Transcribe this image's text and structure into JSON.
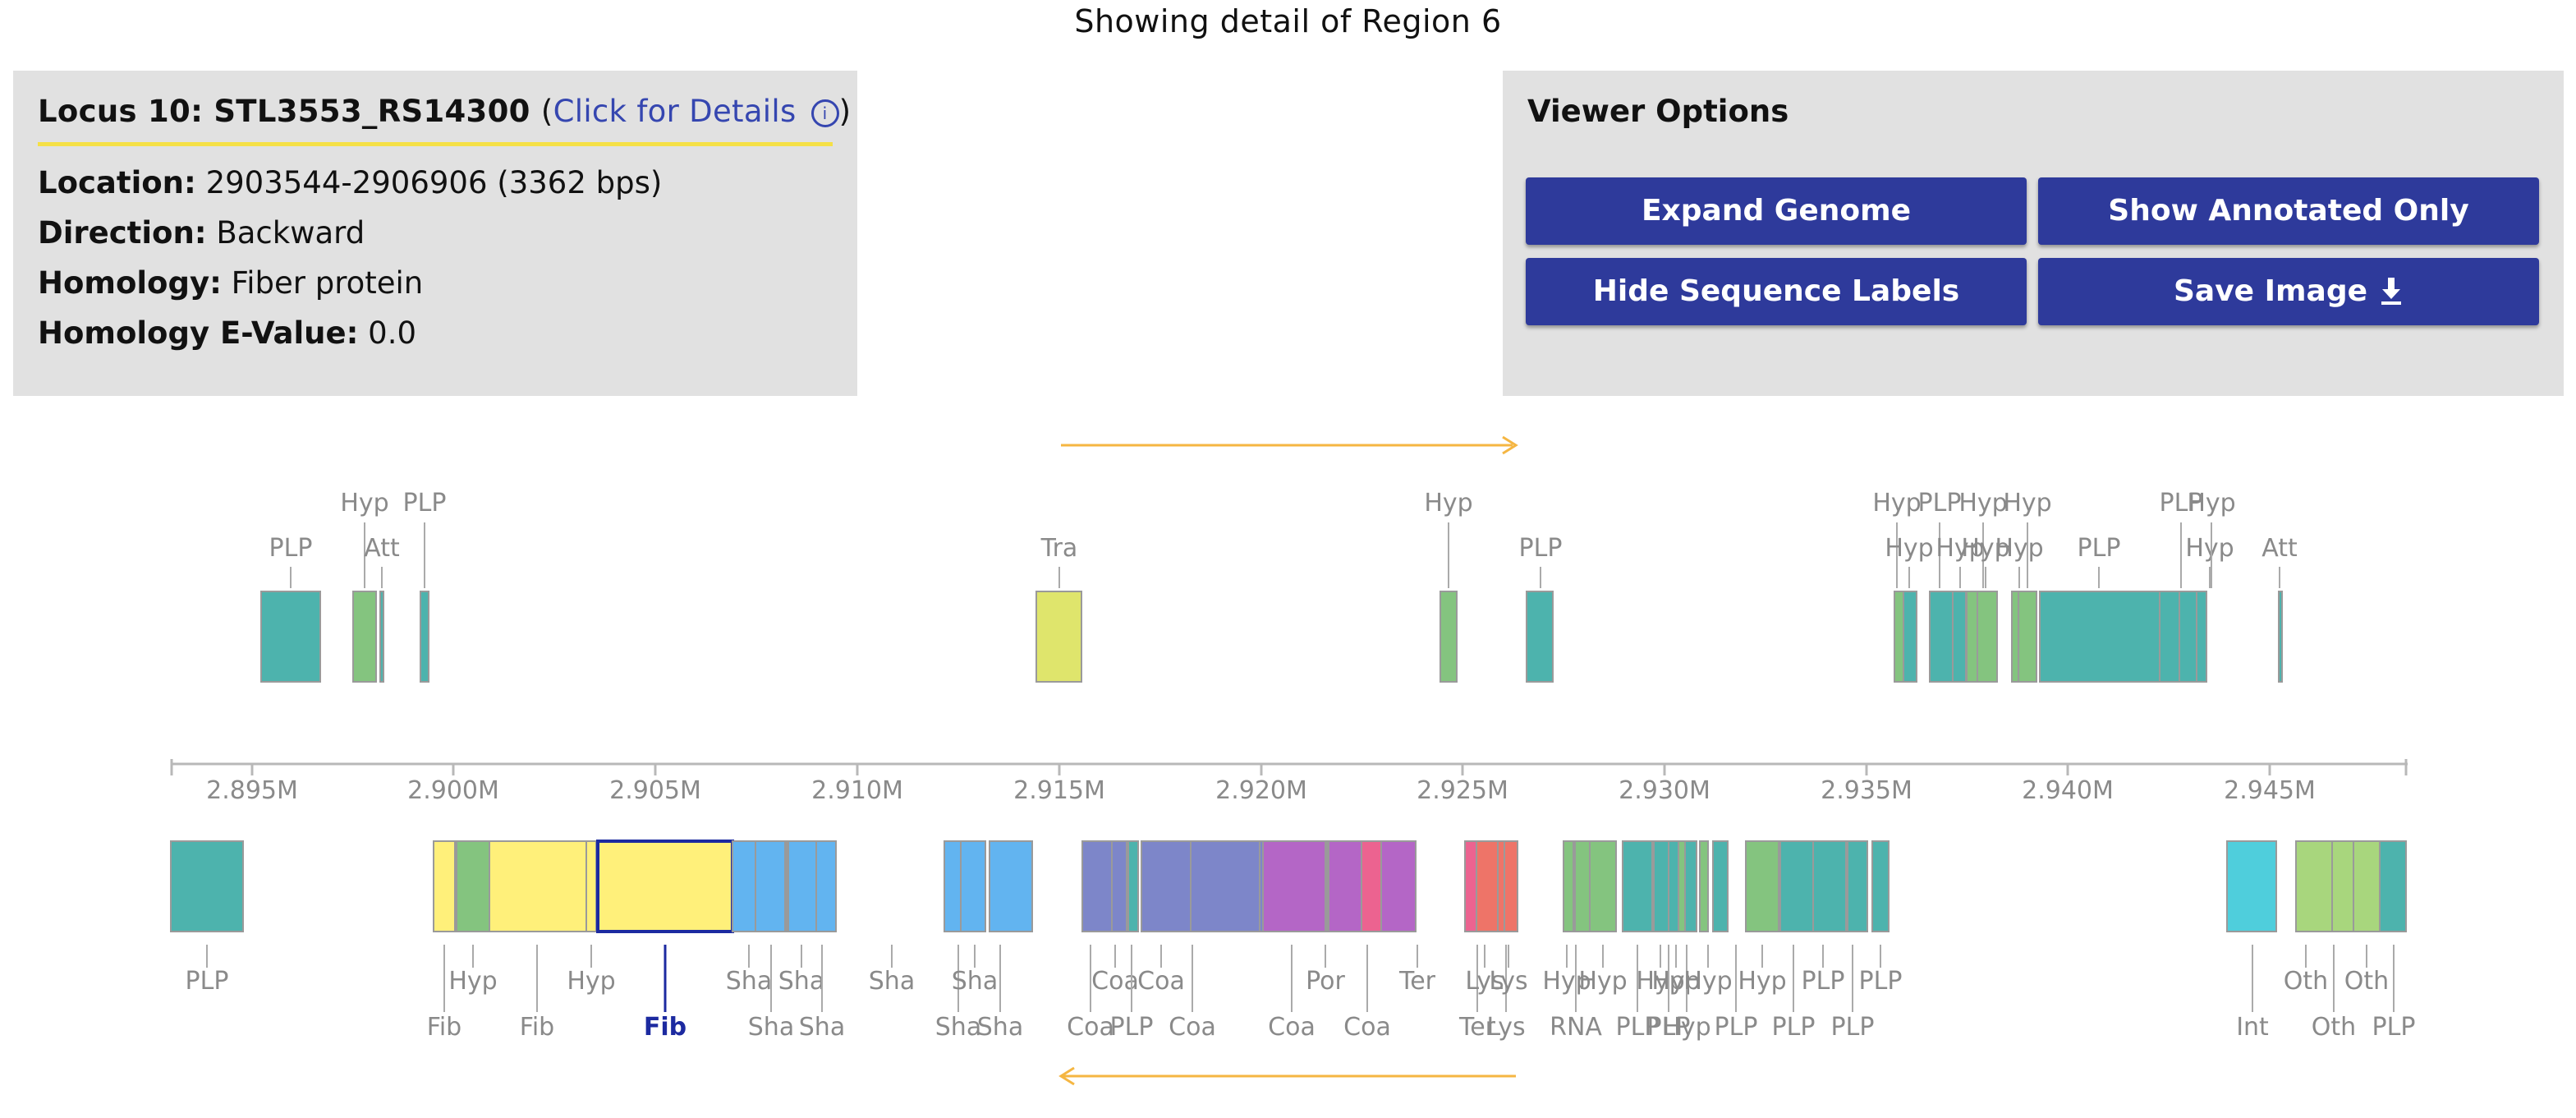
{
  "page_title": "Showing detail of Region 6",
  "locus": {
    "label": "Locus 10:",
    "name": "STL3553_RS14300",
    "link_text": "Click for Details",
    "rows": [
      {
        "key": "Location:",
        "value": "2903544-2906906 (3362 bps)"
      },
      {
        "key": "Direction:",
        "value": "Backward"
      },
      {
        "key": "Homology:",
        "value": "Fiber protein"
      },
      {
        "key": "Homology E-Value:",
        "value": "0.0"
      }
    ]
  },
  "viewer_options": {
    "title": "Viewer Options",
    "buttons": [
      "Expand Genome",
      "Show Annotated Only",
      "Hide Sequence Labels",
      "Save Image"
    ]
  },
  "axis": {
    "ticks": [
      "2.895M",
      "2.900M",
      "2.905M",
      "2.910M",
      "2.915M",
      "2.920M",
      "2.925M",
      "2.930M",
      "2.935M",
      "2.940M",
      "2.945M"
    ]
  },
  "colors": {
    "teal": "#4db3ad",
    "green": "#84c47f",
    "yellow": "#fff07a",
    "yellow2": "#dfe56c",
    "blue": "#62b4f0",
    "indigo": "#7d86c9",
    "purple": "#b466c6",
    "pink": "#ec6390",
    "red": "#ee7468",
    "cyan": "#4fcedc",
    "lime": "#a8d67d",
    "arrow": "#f5b642",
    "selected_label": "#1c2aa0",
    "button": "#2e3a9b"
  },
  "forward_genes": [
    {
      "label": "PLP",
      "color": "teal"
    },
    {
      "label": "Hyp",
      "color": "green"
    },
    {
      "label": "Att",
      "color": "teal"
    },
    {
      "label": "PLP",
      "color": "teal"
    },
    {
      "label": "Tra",
      "color": "yellow2"
    },
    {
      "label": "Hyp",
      "color": "green"
    },
    {
      "label": "PLP",
      "color": "teal"
    },
    {
      "label": "Hyp",
      "color": "green"
    },
    {
      "label": "Hyp",
      "color": "teal"
    },
    {
      "label": "PLP",
      "color": "teal"
    },
    {
      "label": "Hyp",
      "color": "teal"
    },
    {
      "label": "Hyp",
      "color": "green"
    },
    {
      "label": "Hyp",
      "color": "green"
    },
    {
      "label": "Hyp",
      "color": "green"
    },
    {
      "label": "Hyp",
      "color": "green"
    },
    {
      "label": "PLP",
      "color": "teal"
    },
    {
      "label": "PLP",
      "color": "teal"
    },
    {
      "label": "Hyp",
      "color": "teal"
    },
    {
      "label": "Hyp",
      "color": "teal"
    },
    {
      "label": "Att",
      "color": "teal"
    }
  ],
  "reverse_genes": [
    {
      "label": "PLP",
      "color": "teal"
    },
    {
      "label": "Fib",
      "color": "yellow"
    },
    {
      "label": "Hyp",
      "color": "green"
    },
    {
      "label": "Fib",
      "color": "yellow"
    },
    {
      "label": "Hyp",
      "color": "yellow"
    },
    {
      "label": "Fib",
      "color": "yellow",
      "selected": true
    },
    {
      "label": "Sha",
      "color": "blue"
    },
    {
      "label": "Sha",
      "color": "blue"
    },
    {
      "label": "Sha",
      "color": "blue"
    },
    {
      "label": "Sha",
      "color": "blue"
    },
    {
      "label": "Sha",
      "color": "blue"
    },
    {
      "label": "Sha",
      "color": "blue"
    },
    {
      "label": "Sha",
      "color": "blue"
    },
    {
      "label": "Sha",
      "color": "blue"
    },
    {
      "label": "Coa",
      "color": "indigo"
    },
    {
      "label": "Coa",
      "color": "indigo"
    },
    {
      "label": "PLP",
      "color": "teal"
    },
    {
      "label": "Coa",
      "color": "indigo"
    },
    {
      "label": "Coa",
      "color": "indigo"
    },
    {
      "label": "Coa",
      "color": "indigo"
    },
    {
      "label": "Por",
      "color": "purple"
    },
    {
      "label": "Coa",
      "color": "purple"
    },
    {
      "label": "Ter",
      "color": "pink"
    },
    {
      "label": "Ter",
      "color": "pink"
    },
    {
      "label": "Lys",
      "color": "red"
    },
    {
      "label": "Lys",
      "color": "red"
    },
    {
      "label": "Lys",
      "color": "red"
    },
    {
      "label": "Hyp",
      "color": "green"
    },
    {
      "label": "RNA",
      "color": "green"
    },
    {
      "label": "Hyp",
      "color": "green"
    },
    {
      "label": "PLP",
      "color": "teal"
    },
    {
      "label": "Hyp",
      "color": "teal"
    },
    {
      "label": "PLP",
      "color": "teal"
    },
    {
      "label": "Hyp",
      "color": "green"
    },
    {
      "label": "Hyp",
      "color": "teal"
    },
    {
      "label": "Hyp",
      "color": "green"
    },
    {
      "label": "PLP",
      "color": "teal"
    },
    {
      "label": "Hyp",
      "color": "green"
    },
    {
      "label": "PLP",
      "color": "teal"
    },
    {
      "label": "PLP",
      "color": "teal"
    },
    {
      "label": "PLP",
      "color": "teal"
    },
    {
      "label": "PLP",
      "color": "teal"
    },
    {
      "label": "Int",
      "color": "cyan"
    },
    {
      "label": "Oth",
      "color": "lime"
    },
    {
      "label": "Oth",
      "color": "lime"
    },
    {
      "label": "Oth",
      "color": "lime"
    },
    {
      "label": "PLP",
      "color": "teal"
    }
  ]
}
